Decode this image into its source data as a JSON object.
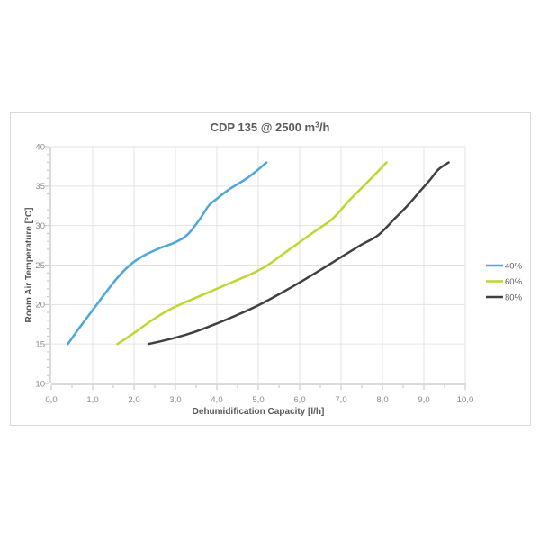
{
  "chart_data": {
    "type": "line",
    "title_parts": {
      "prefix": "CDP 135 @ 2500 m",
      "sup": "3",
      "suffix": "/h"
    },
    "xlabel": "Dehumidification Capacity [l/h]",
    "ylabel": "Room Air  Temperature [°C]",
    "xlim": [
      0,
      10
    ],
    "ylim": [
      10,
      40
    ],
    "x_major_ticks": [
      0,
      1,
      2,
      3,
      4,
      5,
      6,
      7,
      8,
      9,
      10
    ],
    "x_tick_labels": [
      "0,0",
      "1,0",
      "2,0",
      "3,0",
      "4,0",
      "5,0",
      "6,0",
      "7,0",
      "8,0",
      "9,0",
      "10,0"
    ],
    "x_minor_step": 0.5,
    "y_major_ticks": [
      10,
      15,
      20,
      25,
      30,
      35,
      40
    ],
    "y_tick_labels": [
      "10",
      "15",
      "20",
      "25",
      "30",
      "35",
      "40"
    ],
    "y_minor_step": 1,
    "grid": "major",
    "legend_position": "right",
    "series": [
      {
        "name": "40%",
        "color": "#4EA6DC",
        "points": [
          [
            0.4,
            15
          ],
          [
            0.7,
            17.2
          ],
          [
            1.0,
            19.3
          ],
          [
            1.3,
            21.4
          ],
          [
            1.6,
            23.4
          ],
          [
            1.9,
            25.0
          ],
          [
            2.2,
            26.1
          ],
          [
            2.6,
            27.1
          ],
          [
            3.0,
            27.9
          ],
          [
            3.3,
            28.9
          ],
          [
            3.6,
            30.9
          ],
          [
            3.8,
            32.5
          ],
          [
            4.0,
            33.4
          ],
          [
            4.3,
            34.6
          ],
          [
            4.7,
            35.9
          ],
          [
            5.0,
            37.1
          ],
          [
            5.2,
            38.0
          ]
        ]
      },
      {
        "name": "60%",
        "color": "#BFD62F",
        "points": [
          [
            1.6,
            15
          ],
          [
            2.0,
            16.4
          ],
          [
            2.4,
            17.9
          ],
          [
            2.8,
            19.2
          ],
          [
            3.2,
            20.2
          ],
          [
            3.6,
            21.1
          ],
          [
            4.0,
            22.0
          ],
          [
            4.4,
            22.9
          ],
          [
            4.8,
            23.8
          ],
          [
            5.2,
            24.9
          ],
          [
            5.6,
            26.4
          ],
          [
            6.0,
            27.9
          ],
          [
            6.4,
            29.4
          ],
          [
            6.8,
            30.9
          ],
          [
            7.2,
            33.2
          ],
          [
            7.6,
            35.3
          ],
          [
            8.1,
            38.0
          ]
        ]
      },
      {
        "name": "80%",
        "color": "#404040",
        "points": [
          [
            2.35,
            15
          ],
          [
            3.0,
            15.8
          ],
          [
            3.5,
            16.6
          ],
          [
            4.0,
            17.6
          ],
          [
            4.5,
            18.7
          ],
          [
            5.0,
            19.9
          ],
          [
            5.5,
            21.3
          ],
          [
            6.0,
            22.8
          ],
          [
            6.6,
            24.7
          ],
          [
            7.0,
            26.0
          ],
          [
            7.5,
            27.6
          ],
          [
            7.9,
            28.8
          ],
          [
            8.3,
            30.9
          ],
          [
            8.6,
            32.5
          ],
          [
            8.9,
            34.3
          ],
          [
            9.15,
            35.8
          ],
          [
            9.35,
            37.1
          ],
          [
            9.6,
            38.0
          ]
        ]
      }
    ]
  },
  "style": {
    "frame_border": "#d9d9d9",
    "gridline": "#e3e3e3",
    "axis_line": "#dadada",
    "tick_mark": "#c0c0c0",
    "tick_label": "#8a8a8a",
    "title_color": "#595959",
    "background": "#ffffff"
  }
}
